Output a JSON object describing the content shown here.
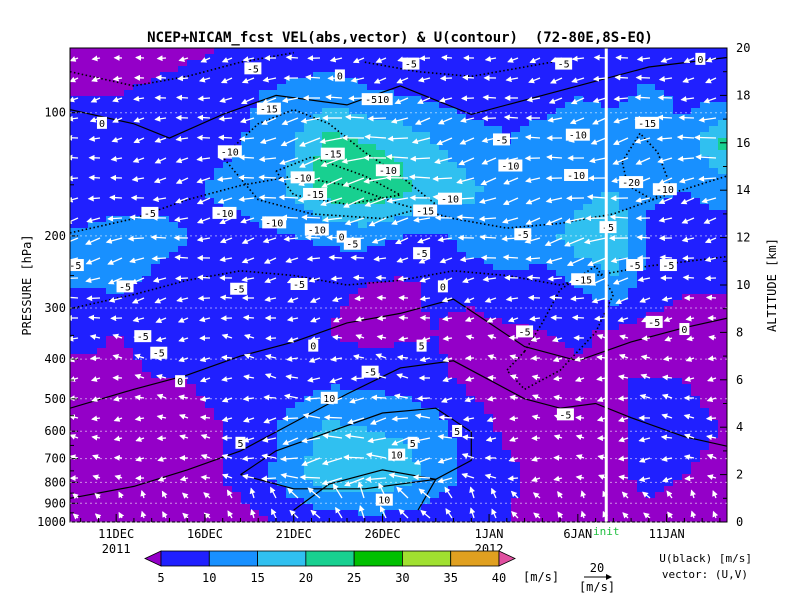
{
  "chart_data": {
    "type": "heatmap",
    "title": "NCEP+NICAM_fcst VEL(abs,vector) & U(contour)  (72-80E,8S-EQ)",
    "ylabel_left": "PRESSURE [hPa]",
    "ylabel_right": "ALTITUDE [km]",
    "pressure_ticks": [
      100,
      200,
      300,
      400,
      500,
      600,
      700,
      800,
      900,
      1000
    ],
    "altitude_ticks": [
      0,
      2,
      4,
      6,
      8,
      10,
      12,
      14,
      16,
      18,
      20
    ],
    "date_ticks": [
      {
        "day": 0,
        "label": "11DEC"
      },
      {
        "day": 5,
        "label": "16DEC"
      },
      {
        "day": 10,
        "label": "21DEC"
      },
      {
        "day": 15,
        "label": "26DEC"
      },
      {
        "day": 21,
        "label": "1JAN"
      },
      {
        "day": 26,
        "label": "6JAN"
      },
      {
        "day": 31,
        "label": "11JAN"
      }
    ],
    "x_day_range": [
      -2.6,
      34.4
    ],
    "year_labels": [
      {
        "day": 0,
        "label": "2011"
      },
      {
        "day": 21,
        "label": "2012"
      }
    ],
    "init_day": 27.6,
    "init_label": "init",
    "colorbar": {
      "levels": [
        5,
        10,
        15,
        20,
        25,
        30,
        35,
        40
      ],
      "colors": [
        "#9400c8",
        "#2020ff",
        "#1890ff",
        "#30c0f0",
        "#18d090",
        "#00c000",
        "#a0e030",
        "#e0a020",
        "#e050a0"
      ],
      "unit": "[m/s]"
    },
    "reference_vector": {
      "value": "20",
      "unit": "[m/s]"
    },
    "legend_lines": [
      "U(black) [m/s]",
      "vector: (U,V)"
    ],
    "speed_field": {
      "days": [
        -2,
        0,
        2,
        4,
        6,
        8,
        10,
        12,
        14,
        16,
        18,
        20,
        22,
        24,
        26,
        28,
        30,
        32,
        34
      ],
      "altitudes_km": [
        0,
        2,
        4,
        6,
        8,
        10,
        12,
        14,
        16,
        18,
        20
      ],
      "values_mps": [
        [
          1,
          1,
          2,
          2,
          3,
          4,
          6,
          7,
          8,
          8,
          7,
          6,
          5,
          3,
          2,
          2,
          3,
          2,
          2
        ],
        [
          3,
          2,
          4,
          3,
          5,
          8,
          14,
          19,
          19,
          18,
          13,
          9,
          6,
          4,
          3,
          3,
          7,
          5,
          4
        ],
        [
          4,
          3,
          4,
          4,
          5,
          7,
          12,
          16,
          15,
          14,
          12,
          7,
          4,
          3,
          3,
          4,
          7,
          6,
          5
        ],
        [
          4,
          4,
          5,
          5,
          6,
          6,
          8,
          9,
          9,
          8,
          6,
          4,
          3,
          3,
          4,
          5,
          5,
          5,
          4
        ],
        [
          6,
          5,
          6,
          5,
          6,
          5,
          6,
          5,
          3,
          4,
          5,
          3,
          4,
          5,
          6,
          4,
          3,
          2,
          2
        ],
        [
          10,
          11,
          9,
          8,
          8,
          8,
          7,
          6,
          5,
          4,
          6,
          7,
          9,
          8,
          10,
          14,
          8,
          6,
          6
        ],
        [
          11,
          13,
          12,
          10,
          8,
          9,
          10,
          11,
          12,
          10,
          9,
          12,
          13,
          12,
          18,
          20,
          9,
          8,
          7
        ],
        [
          6,
          7,
          8,
          9,
          11,
          12,
          16,
          23,
          24,
          21,
          18,
          16,
          13,
          11,
          13,
          15,
          11,
          10,
          12
        ],
        [
          7,
          6,
          7,
          8,
          9,
          11,
          15,
          22,
          20,
          19,
          15,
          12,
          10,
          11,
          12,
          13,
          12,
          11,
          21
        ],
        [
          5,
          5,
          6,
          7,
          8,
          10,
          12,
          13,
          11,
          10,
          9,
          8,
          9,
          9,
          10,
          9,
          11,
          9,
          8
        ],
        [
          3,
          2,
          3,
          4,
          5,
          6,
          6,
          7,
          6,
          5,
          5,
          5,
          6,
          6,
          7,
          7,
          8,
          6,
          5
        ]
      ]
    },
    "contour_labels": [
      {
        "day": 7.7,
        "alt": 19.1,
        "text": "-5"
      },
      {
        "day": 12.6,
        "alt": 18.8,
        "text": "0"
      },
      {
        "day": 16.6,
        "alt": 19.3,
        "text": "-5"
      },
      {
        "day": 25.2,
        "alt": 19.3,
        "text": "-5"
      },
      {
        "day": 32.9,
        "alt": 19.5,
        "text": "0"
      },
      {
        "day": -0.8,
        "alt": 16.8,
        "text": "0"
      },
      {
        "day": 8.6,
        "alt": 17.4,
        "text": "-15"
      },
      {
        "day": 6.4,
        "alt": 15.6,
        "text": "-10"
      },
      {
        "day": 14.7,
        "alt": 17.8,
        "text": "-510"
      },
      {
        "day": 12.2,
        "alt": 15.5,
        "text": "-15"
      },
      {
        "day": 10.5,
        "alt": 14.5,
        "text": "-10"
      },
      {
        "day": 11.2,
        "alt": 13.8,
        "text": "-15"
      },
      {
        "day": 15.3,
        "alt": 14.8,
        "text": "-10"
      },
      {
        "day": 18.8,
        "alt": 13.6,
        "text": "-10"
      },
      {
        "day": 17.4,
        "alt": 13.1,
        "text": "-15"
      },
      {
        "day": 21.7,
        "alt": 16.1,
        "text": "-5"
      },
      {
        "day": 22.2,
        "alt": 15.0,
        "text": "-10"
      },
      {
        "day": 26.0,
        "alt": 16.3,
        "text": "-10"
      },
      {
        "day": 29.9,
        "alt": 16.8,
        "text": "-15"
      },
      {
        "day": 30.9,
        "alt": 14.0,
        "text": "-10"
      },
      {
        "day": 29.0,
        "alt": 14.3,
        "text": "-20"
      },
      {
        "day": 25.9,
        "alt": 14.6,
        "text": "-10"
      },
      {
        "day": 1.9,
        "alt": 13.0,
        "text": "-5"
      },
      {
        "day": 6.1,
        "alt": 13.0,
        "text": "-10"
      },
      {
        "day": 8.9,
        "alt": 12.6,
        "text": "-10"
      },
      {
        "day": 11.3,
        "alt": 12.3,
        "text": "-10"
      },
      {
        "day": 17.2,
        "alt": 11.3,
        "text": "-5"
      },
      {
        "day": 12.7,
        "alt": 12.0,
        "text": "0"
      },
      {
        "day": 13.3,
        "alt": 11.7,
        "text": "-5"
      },
      {
        "day": 22.9,
        "alt": 12.1,
        "text": "-5"
      },
      {
        "day": 27.7,
        "alt": 12.4,
        "text": "-5"
      },
      {
        "day": 29.2,
        "alt": 10.8,
        "text": "-5"
      },
      {
        "day": 31.1,
        "alt": 10.8,
        "text": "-5"
      },
      {
        "day": 30.3,
        "alt": 8.4,
        "text": "-5"
      },
      {
        "day": 26.3,
        "alt": 10.2,
        "text": "-15"
      },
      {
        "day": -2.3,
        "alt": 10.8,
        "text": "-5"
      },
      {
        "day": 0.5,
        "alt": 9.9,
        "text": "-5"
      },
      {
        "day": 6.9,
        "alt": 9.8,
        "text": "-5"
      },
      {
        "day": 1.5,
        "alt": 7.8,
        "text": "-5"
      },
      {
        "day": 2.4,
        "alt": 7.1,
        "text": "-5"
      },
      {
        "day": 10.3,
        "alt": 10.0,
        "text": "-5"
      },
      {
        "day": 18.4,
        "alt": 9.9,
        "text": "0"
      },
      {
        "day": 32.0,
        "alt": 8.1,
        "text": "0"
      },
      {
        "day": 11.1,
        "alt": 7.4,
        "text": "0"
      },
      {
        "day": 17.2,
        "alt": 7.4,
        "text": "5"
      },
      {
        "day": 23.0,
        "alt": 8.0,
        "text": "-5"
      },
      {
        "day": 3.6,
        "alt": 5.9,
        "text": "0"
      },
      {
        "day": 14.3,
        "alt": 6.3,
        "text": "-5"
      },
      {
        "day": 12.0,
        "alt": 5.2,
        "text": "10"
      },
      {
        "day": 25.3,
        "alt": 4.5,
        "text": "-5"
      },
      {
        "day": 7.0,
        "alt": 3.3,
        "text": "5"
      },
      {
        "day": 19.2,
        "alt": 3.8,
        "text": "5"
      },
      {
        "day": 16.7,
        "alt": 3.3,
        "text": "5"
      },
      {
        "day": 15.8,
        "alt": 2.8,
        "text": "10"
      },
      {
        "day": 15.1,
        "alt": 0.9,
        "text": "10"
      }
    ]
  }
}
